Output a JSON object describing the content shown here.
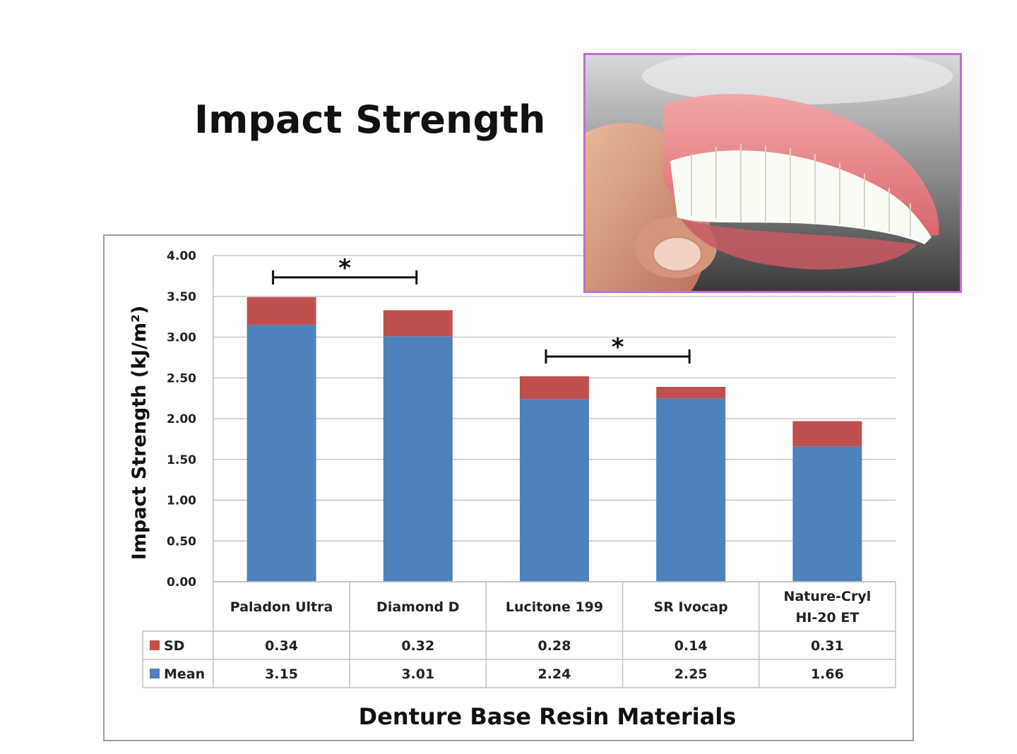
{
  "slide": {
    "title": "Impact Strength"
  },
  "photo": {
    "subject": "denture-photo"
  },
  "chart_data": {
    "type": "bar",
    "stacked": true,
    "title": "",
    "xlabel": "Denture Base Resin Materials",
    "ylabel": "Impact Strength (kJ/m²)",
    "ylim": [
      0,
      4
    ],
    "yticks": [
      "0.00",
      "0.50",
      "1.00",
      "1.50",
      "2.00",
      "2.50",
      "3.00",
      "3.50",
      "4.00"
    ],
    "grid": true,
    "categories": [
      "Paladon Ultra",
      "Diamond D",
      "Lucitone 199",
      "SR  Ivocap",
      "Nature-Cryl HI-20 ET"
    ],
    "category_lines": [
      [
        "Paladon Ultra"
      ],
      [
        "Diamond D"
      ],
      [
        "Lucitone 199"
      ],
      [
        "SR  Ivocap"
      ],
      [
        "Nature-Cryl",
        "HI-20 ET"
      ]
    ],
    "series": [
      {
        "name": "Mean",
        "color": "#4f81bd",
        "values": [
          3.15,
          3.01,
          2.24,
          2.25,
          1.66
        ],
        "labels": [
          "3.15",
          "3.01",
          "2.24",
          "2.25",
          "1.66"
        ]
      },
      {
        "name": "SD",
        "color": "#c0504d",
        "values": [
          0.34,
          0.32,
          0.28,
          0.14,
          0.31
        ],
        "labels": [
          "0.34",
          "0.32",
          "0.28",
          "0.14",
          "0.31"
        ]
      }
    ],
    "data_table_rows": [
      "SD",
      "Mean"
    ],
    "significance": [
      {
        "from": 0,
        "to": 1,
        "label": "*"
      },
      {
        "from": 2,
        "to": 3,
        "label": "*"
      }
    ]
  }
}
